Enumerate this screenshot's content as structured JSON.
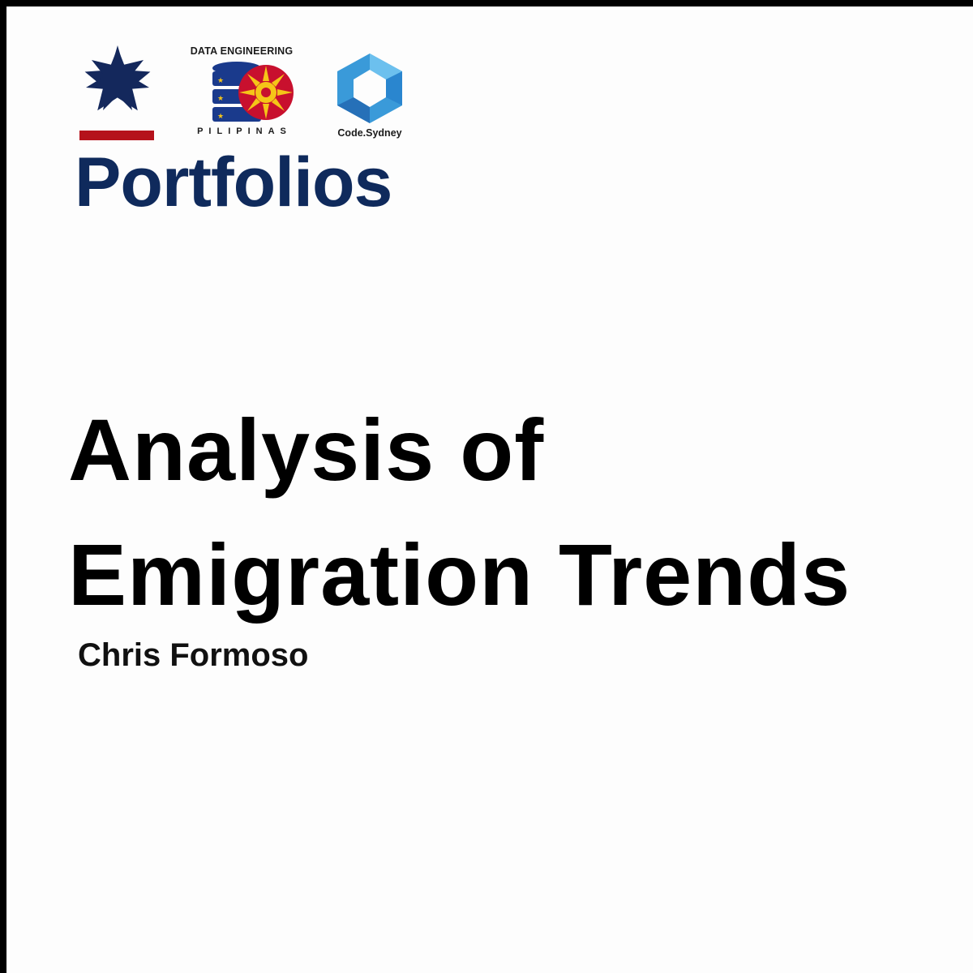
{
  "logos": {
    "star_logo": {
      "icon": "seven-point-star-icon",
      "star_color": "#14285c",
      "bar_color": "#b5121b"
    },
    "data_engineering": {
      "top_text": "DATA ENGINEERING",
      "bottom_text": "PILIPINAS",
      "icon": "database-sun-icon",
      "db_color": "#1a3a8c",
      "sun_color": "#f5c518",
      "ray_color": "#c8102e"
    },
    "code_sydney": {
      "text": "Code.Sydney",
      "icon": "hexagon-ring-icon",
      "hex_color": "#3a9ad9"
    }
  },
  "brand_heading": "Portfolios",
  "title": {
    "line1": "Analysis of",
    "line2": "Emigration Trends"
  },
  "author": "Chris Formoso",
  "colors": {
    "navy": "#0f2a5c",
    "text": "#000000",
    "background": "#fdfdfd",
    "frame": "#000000"
  }
}
